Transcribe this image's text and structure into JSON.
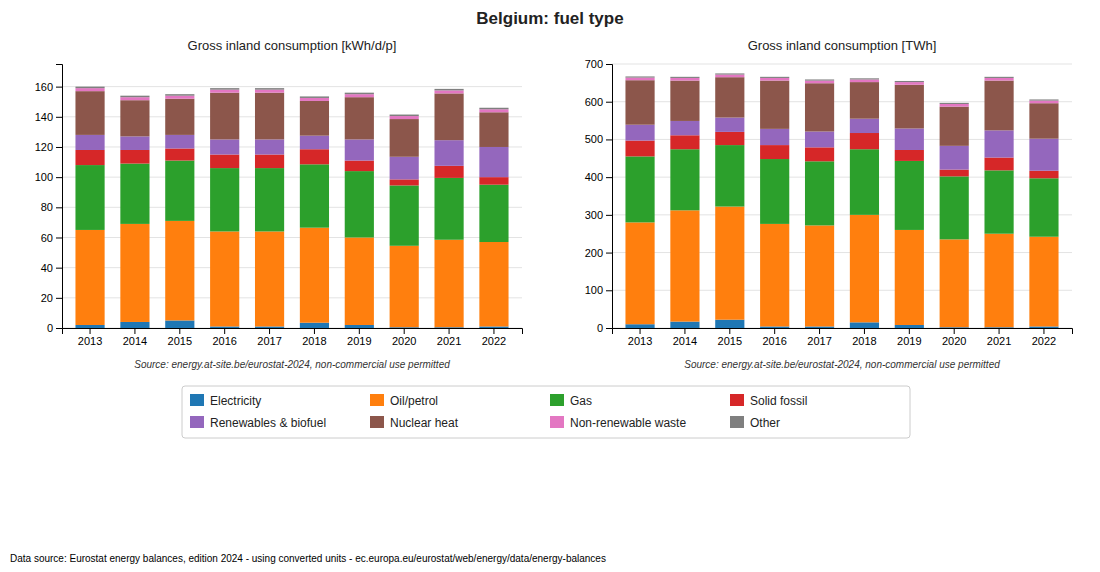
{
  "chart_data": [
    {
      "type": "bar",
      "stacked": true,
      "grid": true,
      "legend": "bottom",
      "title": "Belgium: fuel type",
      "subtitle": "Gross inland consumption [kWh/d/p]",
      "annotations": [
        "Source: energy.at-site.be/eurostat-2024, non-commercial use permitted",
        "Data source: Eurostat energy balances, edition 2024 - using converted units - ec.europa.eu/eurostat/web/energy/data/energy-balances"
      ],
      "categories": [
        "2013",
        "2014",
        "2015",
        "2016",
        "2017",
        "2018",
        "2019",
        "2020",
        "2021",
        "2022"
      ],
      "series": [
        {
          "name": "Electricity",
          "color": "#1f77b4",
          "values": [
            2.0,
            4.0,
            5.0,
            1.0,
            1.0,
            3.5,
            2.0,
            0.5,
            0.5,
            1.0
          ]
        },
        {
          "name": "Oil/petrol",
          "color": "#ff7f0e",
          "values": [
            63,
            65,
            66,
            63,
            63,
            63,
            58,
            54,
            58,
            56
          ]
        },
        {
          "name": "Gas",
          "color": "#2ca02c",
          "values": [
            43,
            40,
            40,
            42,
            42,
            42,
            44,
            40,
            41,
            38
          ]
        },
        {
          "name": "Solid fossil",
          "color": "#d62728",
          "values": [
            10,
            9,
            8,
            9,
            9,
            10,
            7,
            4,
            8,
            5
          ]
        },
        {
          "name": "Renewables & biofuel",
          "color": "#9467bd",
          "values": [
            10,
            9,
            9,
            10,
            10,
            9,
            14,
            15,
            17,
            20
          ]
        },
        {
          "name": "Nuclear heat",
          "color": "#8c564b",
          "values": [
            29,
            24,
            24,
            31,
            31,
            23,
            28,
            25,
            31,
            23
          ]
        },
        {
          "name": "Non-renewable waste",
          "color": "#e377c2",
          "values": [
            2,
            2,
            2,
            2,
            2,
            2,
            2,
            2,
            2,
            2
          ]
        },
        {
          "name": "Other",
          "color": "#7f7f7f",
          "values": [
            1,
            1,
            1,
            1,
            1,
            1,
            1,
            1,
            1,
            1
          ]
        }
      ],
      "ylim": [
        0,
        175
      ],
      "yticks": [
        0,
        20,
        40,
        60,
        80,
        100,
        120,
        140,
        160
      ]
    },
    {
      "type": "bar",
      "stacked": true,
      "grid": true,
      "subtitle": "Gross inland consumption [TWh]",
      "annotations": [
        "Source: energy.at-site.be/eurostat-2024, non-commercial use permitted"
      ],
      "categories": [
        "2013",
        "2014",
        "2015",
        "2016",
        "2017",
        "2018",
        "2019",
        "2020",
        "2021",
        "2022"
      ],
      "series": [
        {
          "color": "#1f77b4",
          "values": [
            10,
            17,
            22,
            4,
            4,
            15,
            8,
            2,
            2,
            4
          ]
        },
        {
          "color": "#ff7f0e",
          "values": [
            270,
            295,
            300,
            272,
            268,
            285,
            252,
            233,
            248,
            238
          ]
        },
        {
          "color": "#2ca02c",
          "values": [
            175,
            162,
            163,
            172,
            170,
            174,
            183,
            167,
            168,
            155
          ]
        },
        {
          "color": "#d62728",
          "values": [
            42,
            37,
            35,
            37,
            37,
            43,
            29,
            18,
            34,
            20
          ]
        },
        {
          "color": "#9467bd",
          "values": [
            42,
            38,
            38,
            43,
            42,
            38,
            57,
            63,
            72,
            85
          ]
        },
        {
          "color": "#8c564b",
          "values": [
            118,
            107,
            107,
            128,
            128,
            97,
            116,
            104,
            132,
            94
          ]
        },
        {
          "color": "#e377c2",
          "values": [
            7,
            7,
            7,
            7,
            7,
            7,
            7,
            7,
            7,
            7
          ]
        },
        {
          "color": "#7f7f7f",
          "values": [
            3,
            3,
            3,
            3,
            3,
            3,
            3,
            3,
            3,
            3
          ]
        }
      ],
      "ylim": [
        0,
        700
      ],
      "yticks": [
        0,
        100,
        200,
        300,
        400,
        500,
        600,
        700
      ]
    }
  ]
}
